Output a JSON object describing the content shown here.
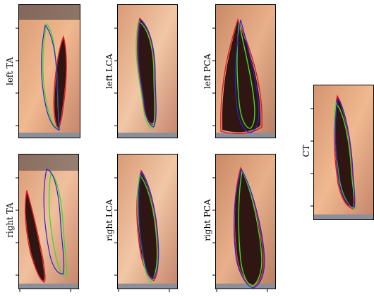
{
  "figure": {
    "panels": [
      {
        "id": "p1",
        "label": "left TA"
      },
      {
        "id": "p2",
        "label": "left LCA"
      },
      {
        "id": "p3",
        "label": "left PCA"
      },
      {
        "id": "p4",
        "label": "right TA"
      },
      {
        "id": "p5",
        "label": "right LCA"
      },
      {
        "id": "p6",
        "label": "right PCA"
      },
      {
        "id": "p7",
        "label": "CT"
      }
    ],
    "contour_colors": {
      "red": "#e8141e",
      "green": "#3fdc2a",
      "blue": "#2a22d8"
    },
    "tissue_colors": {
      "base": "#e2a27a",
      "light": "#f1c7a6",
      "dark": "#2f1612",
      "bar": "#8a8f9a"
    }
  }
}
